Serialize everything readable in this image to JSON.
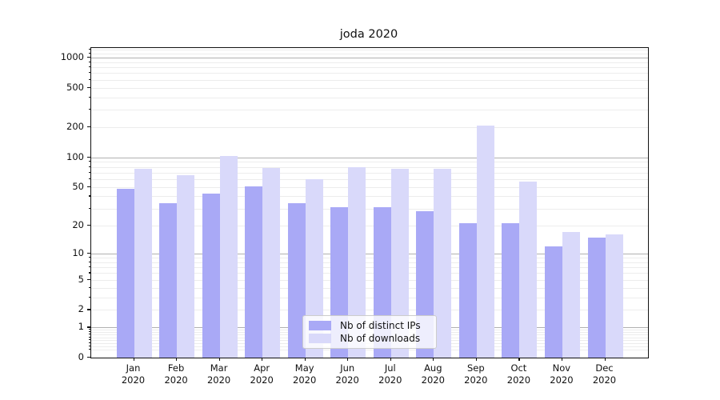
{
  "title": "joda 2020",
  "legend": {
    "items": [
      {
        "label": "Nb of distinct IPs",
        "color": "#a9a9f6"
      },
      {
        "label": "Nb of downloads",
        "color": "#d9d9fa"
      }
    ]
  },
  "chart_data": {
    "type": "bar",
    "title": "joda 2020",
    "categories": [
      "Jan",
      "Feb",
      "Mar",
      "Apr",
      "May",
      "Jun",
      "Jul",
      "Aug",
      "Sep",
      "Oct",
      "Nov",
      "Dec"
    ],
    "category_year": "2020",
    "series": [
      {
        "name": "Nb of distinct IPs",
        "color": "#a9a9f6",
        "values": [
          48,
          34,
          43,
          51,
          34,
          31,
          31,
          28,
          21,
          21,
          12,
          15
        ]
      },
      {
        "name": "Nb of downloads",
        "color": "#d9d9fa",
        "values": [
          76,
          66,
          102,
          78,
          60,
          79,
          76,
          77,
          208,
          57,
          17,
          16
        ]
      }
    ],
    "xlabel": "",
    "ylabel": "",
    "yscale": "log1p",
    "ylim": [
      0,
      1248
    ],
    "yticks": [
      0,
      1,
      2,
      5,
      10,
      20,
      50,
      100,
      200,
      500,
      1000
    ],
    "grid": true,
    "legend_position": "lower center",
    "colors": {
      "major_grid": "#b0b0b0",
      "minor_grid": "#ececec",
      "spine": "#111111",
      "background": "#ffffff"
    }
  }
}
